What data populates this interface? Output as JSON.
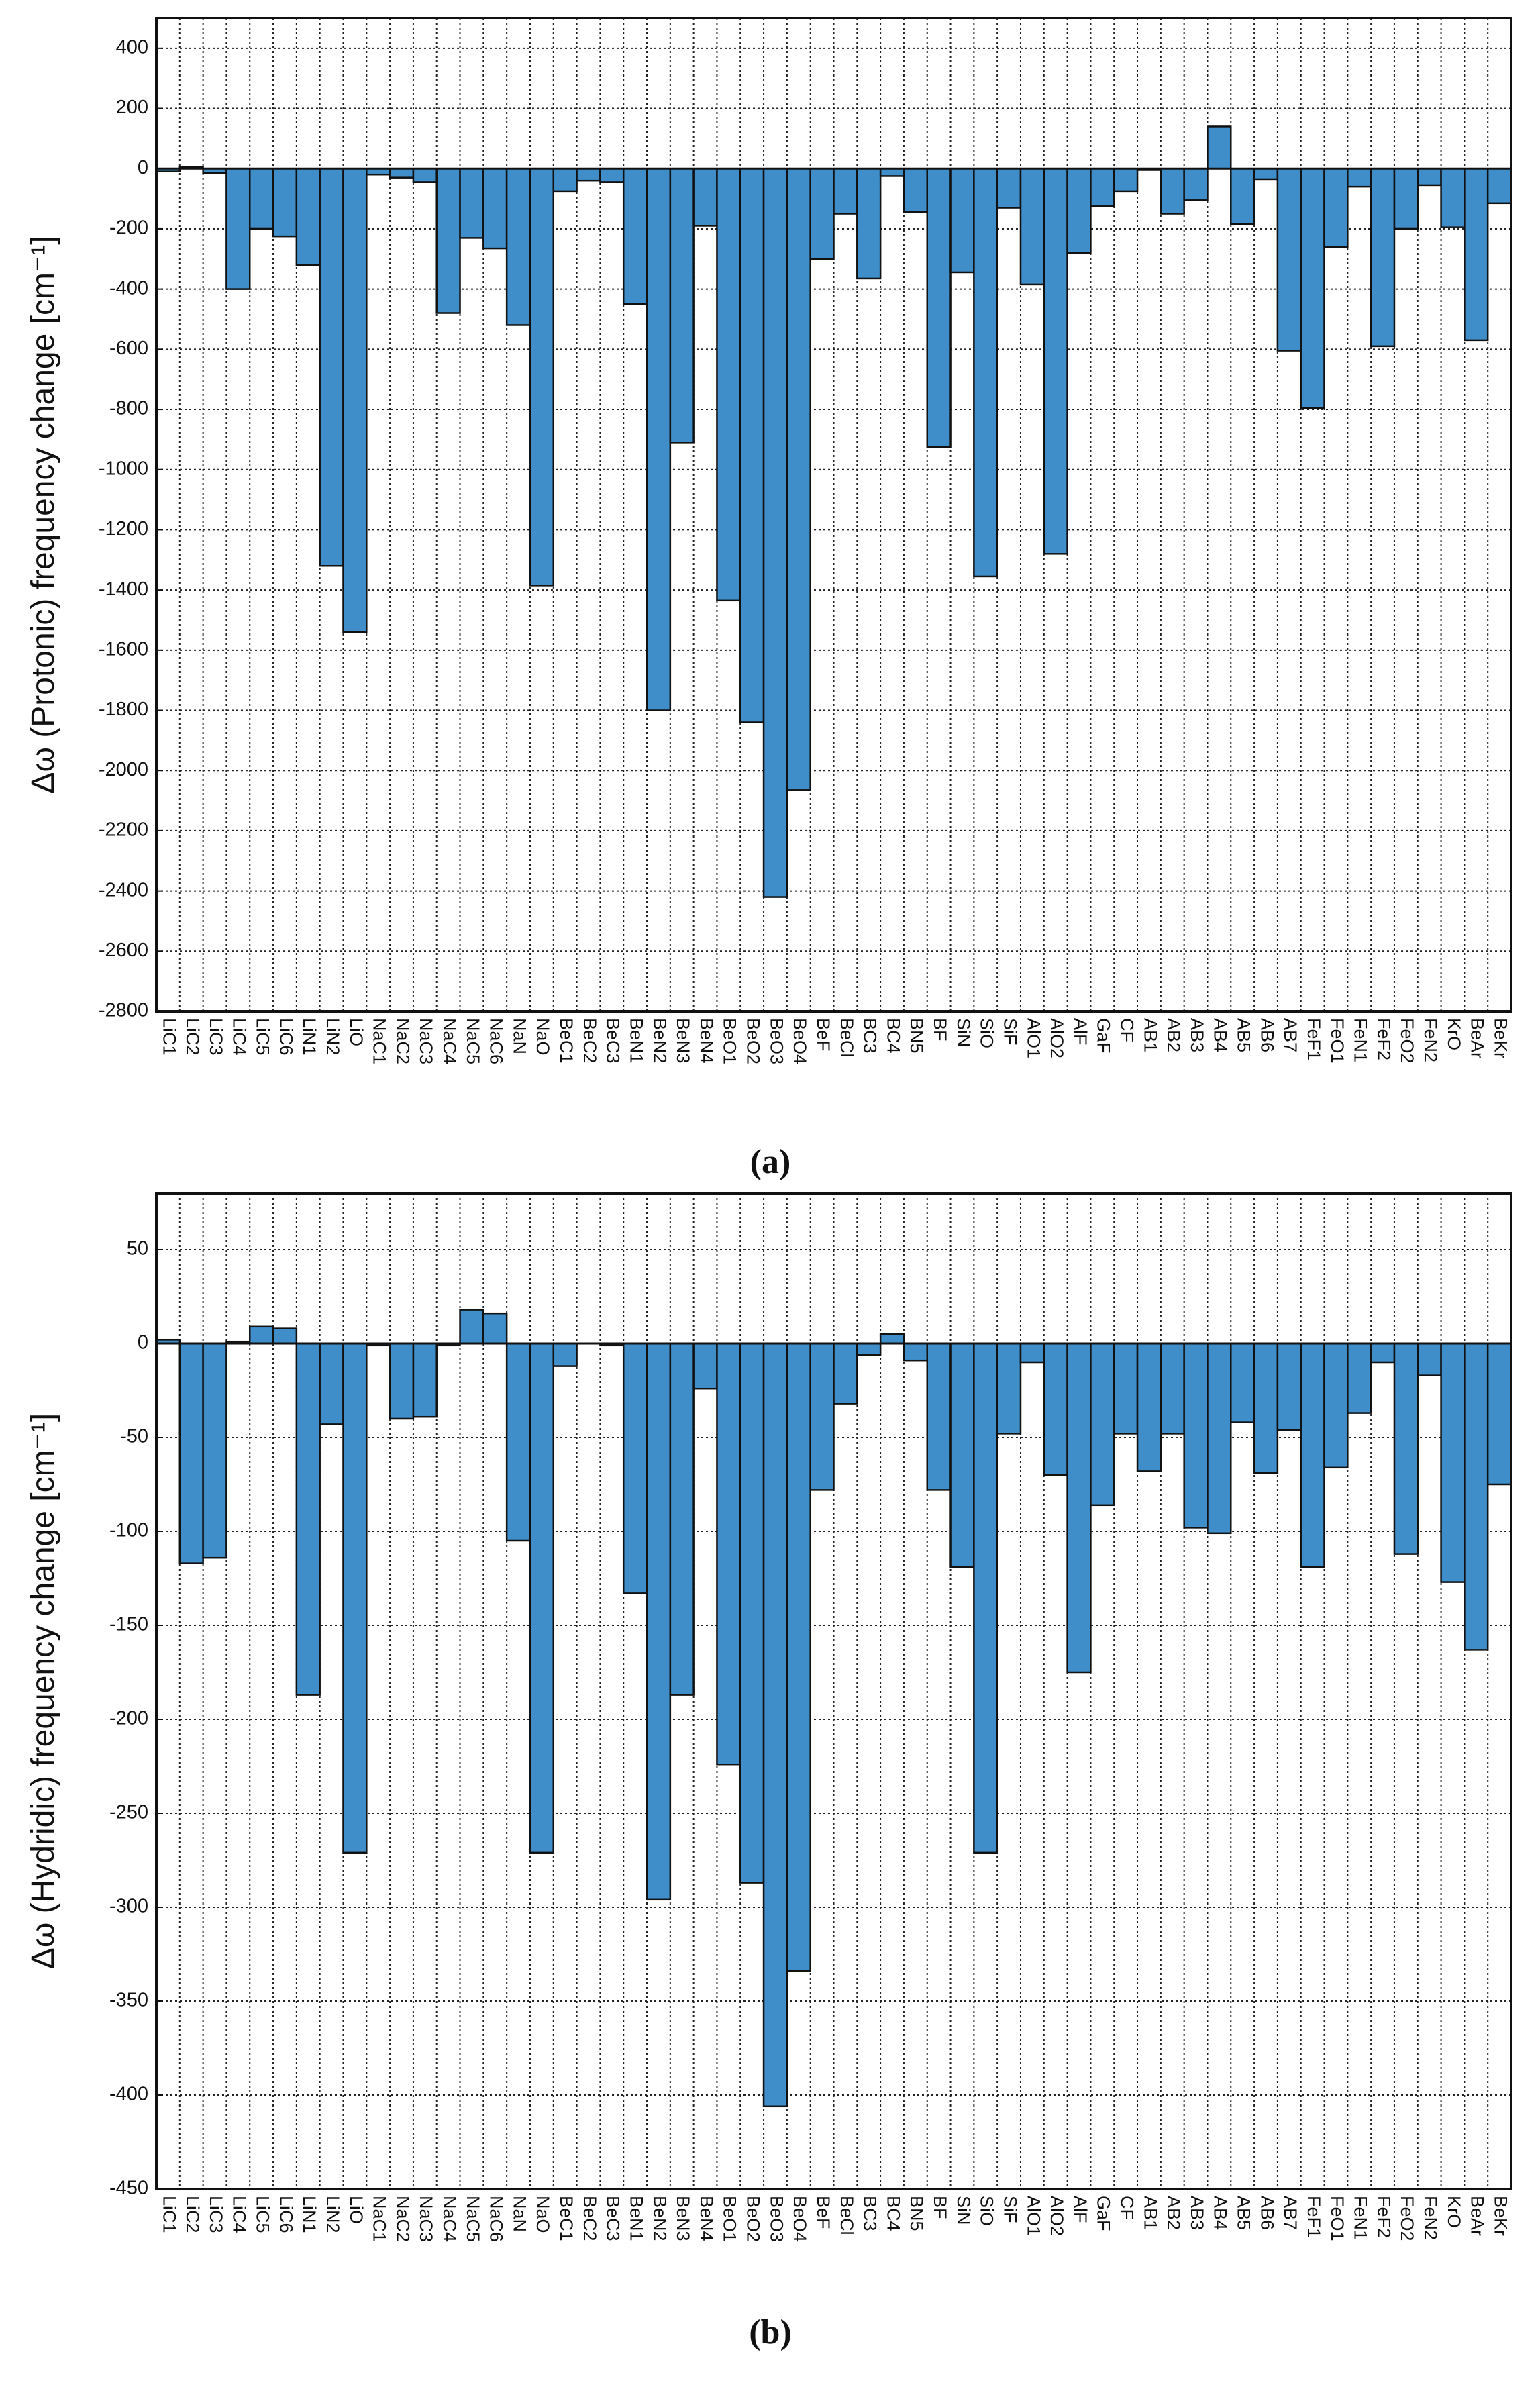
{
  "chart_data": [
    {
      "type": "bar",
      "y_label": "Δω (Protonic) frequency change [cm⁻¹]",
      "caption": "(a)",
      "color": "#3f8ec9",
      "grid": true,
      "categories": [
        "LiC1",
        "LiC2",
        "LiC3",
        "LiC4",
        "LiC5",
        "LiC6",
        "LiN1",
        "LiN2",
        "LiO",
        "NaC1",
        "NaC2",
        "NaC3",
        "NaC4",
        "NaC5",
        "NaC6",
        "NaN",
        "NaO",
        "BeC1",
        "BeC2",
        "BeC3",
        "BeN1",
        "BeN2",
        "BeN3",
        "BeN4",
        "BeO1",
        "BeO2",
        "BeO3",
        "BeO4",
        "BeF",
        "BeCl",
        "BC3",
        "BC4",
        "BN5",
        "BF",
        "SiN",
        "SiO",
        "SiF",
        "AlO1",
        "AlO2",
        "AlF",
        "GaF",
        "CF",
        "AB1",
        "AB2",
        "AB3",
        "AB4",
        "AB5",
        "AB6",
        "AB7",
        "FeF1",
        "FeO1",
        "FeN1",
        "FeF2",
        "FeO2",
        "FeN2",
        "KrO",
        "BeAr",
        "BeKr"
      ],
      "values": [
        -10,
        5,
        -15,
        -400,
        -200,
        -225,
        -320,
        -1320,
        -1540,
        -20,
        -30,
        -45,
        -480,
        -230,
        -265,
        -520,
        -1385,
        -75,
        -40,
        -45,
        -450,
        -1800,
        -910,
        -190,
        -1435,
        -1840,
        -2420,
        -2065,
        -300,
        -150,
        -365,
        -25,
        -145,
        -925,
        -345,
        -1355,
        -130,
        -385,
        -1280,
        -280,
        -125,
        -75,
        -5,
        -150,
        -105,
        140,
        -185,
        -35,
        -605,
        -795,
        -260,
        -60,
        -590,
        -200,
        -55,
        -195,
        -570,
        -115
      ],
      "ylim": [
        -2800,
        500
      ],
      "yticks": [
        -2800,
        -2600,
        -2400,
        -2200,
        -2000,
        -1800,
        -1600,
        -1400,
        -1200,
        -1000,
        -800,
        -600,
        -400,
        -200,
        0,
        200,
        400
      ]
    },
    {
      "type": "bar",
      "y_label": "Δω (Hydridic) frequency change [cm⁻¹]",
      "caption": "(b)",
      "color": "#3f8ec9",
      "grid": true,
      "categories": [
        "LiC1",
        "LiC2",
        "LiC3",
        "LiC4",
        "LiC5",
        "LiC6",
        "LiN1",
        "LiN2",
        "LiO",
        "NaC1",
        "NaC2",
        "NaC3",
        "NaC4",
        "NaC5",
        "NaC6",
        "NaN",
        "NaO",
        "BeC1",
        "BeC2",
        "BeC3",
        "BeN1",
        "BeN2",
        "BeN3",
        "BeN4",
        "BeO1",
        "BeO2",
        "BeO3",
        "BeO4",
        "BeF",
        "BeCl",
        "BC3",
        "BC4",
        "BN5",
        "BF",
        "SiN",
        "SiO",
        "SiF",
        "AlO1",
        "AlO2",
        "AlF",
        "GaF",
        "CF",
        "AB1",
        "AB2",
        "AB3",
        "AB4",
        "AB5",
        "AB6",
        "AB7",
        "FeF1",
        "FeO1",
        "FeN1",
        "FeF2",
        "FeO2",
        "FeN2",
        "KrO",
        "BeAr",
        "BeKr"
      ],
      "values": [
        2,
        -117,
        -114,
        1,
        9,
        8,
        -187,
        -43,
        -271,
        -1,
        -40,
        -39,
        -1,
        18,
        16,
        -105,
        -271,
        -12,
        0,
        -1,
        -133,
        -296,
        -187,
        -24,
        -224,
        -287,
        -406,
        -334,
        -78,
        -32,
        -6,
        5,
        -9,
        -78,
        -119,
        -271,
        -48,
        -10,
        -70,
        -175,
        -86,
        -48,
        -68,
        -48,
        -98,
        -101,
        -42,
        -69,
        -46,
        -119,
        -66,
        -37,
        -10,
        -112,
        -17,
        -127,
        -163,
        -75
      ],
      "ylim": [
        -450,
        80
      ],
      "yticks": [
        -450,
        -400,
        -350,
        -300,
        -250,
        -200,
        -150,
        -100,
        -50,
        0,
        50
      ]
    }
  ]
}
